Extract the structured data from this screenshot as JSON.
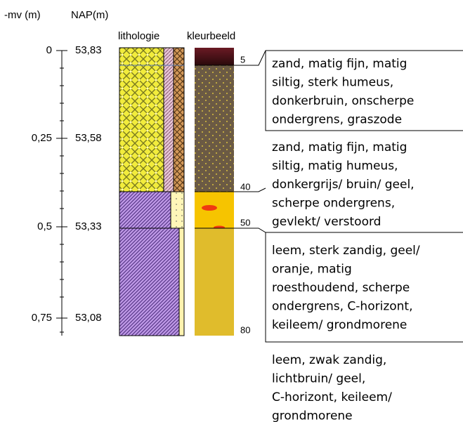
{
  "header": {
    "depth_label": "-mv (m)",
    "nap_label": "NAP(m)",
    "lithology_label": "lithologie",
    "color_label": "kleurbeeld"
  },
  "depth_scale": [
    {
      "depth": "0",
      "nap": "53,83"
    },
    {
      "depth": "0,25",
      "nap": "53,58"
    },
    {
      "depth": "0,5",
      "nap": "53,33"
    },
    {
      "depth": "0,75",
      "nap": "53,08"
    }
  ],
  "layers": [
    {
      "bottom": "5",
      "description": [
        "zand, matig fijn, matig",
        "siltig, sterk humeus,",
        "donkerbruin, onscherpe",
        "ondergrens, graszode"
      ]
    },
    {
      "bottom": "40",
      "description": [
        "zand, matig fijn, matig",
        "siltig, matig humeus,",
        "donkergrijs/ bruin/ geel,",
        "scherpe ondergrens,",
        "gevlekt/ verstoord"
      ]
    },
    {
      "bottom": "50",
      "description": [
        "leem, sterk zandig, geel/",
        "oranje, matig",
        "roesthoudend, scherpe",
        "ondergrens, C-horizont,",
        "keileem/ grondmorene"
      ]
    },
    {
      "bottom": "80",
      "description": [
        "leem, zwak zandig,",
        "lichtbruin/ geel,",
        "C-horizont, keileem/",
        "grondmorene"
      ]
    }
  ]
}
